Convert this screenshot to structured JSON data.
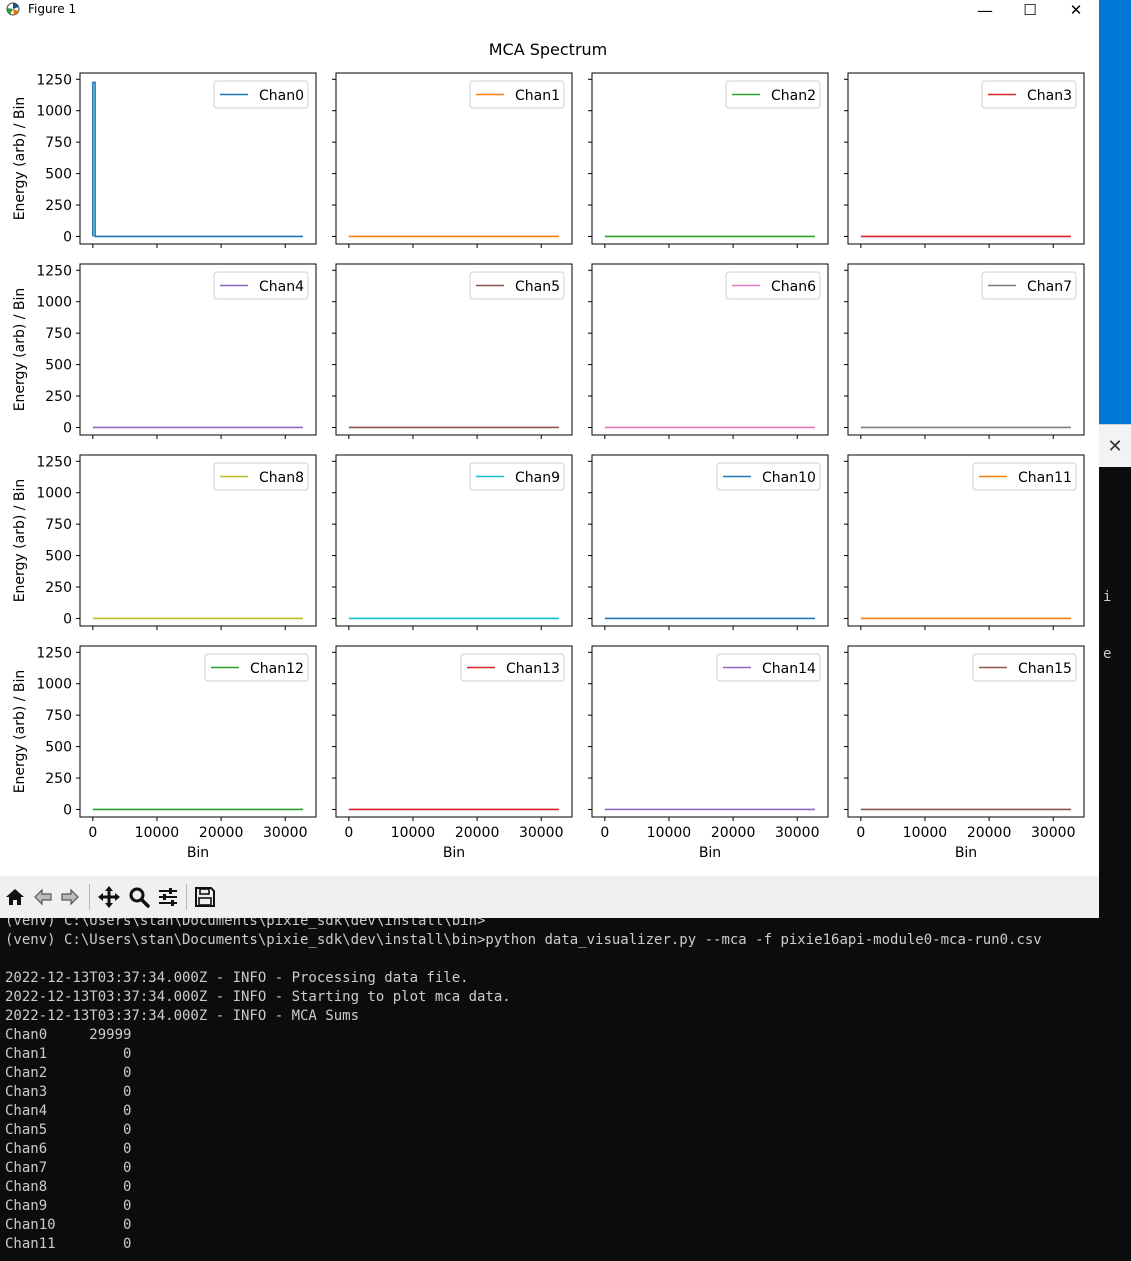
{
  "window": {
    "title": "Figure 1",
    "buttons": {
      "minimize": "—",
      "maximize": "☐",
      "close": "✕"
    }
  },
  "figure": {
    "title": "MCA Spectrum",
    "ylabel": "Energy (arb) / Bin",
    "xlabel": "Bin",
    "y_ticks": [
      "0",
      "250",
      "500",
      "750",
      "1000",
      "1250"
    ],
    "x_ticks": [
      "0",
      "10000",
      "20000",
      "30000"
    ]
  },
  "chart_data": {
    "type": "line",
    "title": "MCA Spectrum",
    "xlabel": "Bin",
    "ylabel": "Energy (arb) / Bin",
    "xlim": [
      -2000,
      34800
    ],
    "ylim": [
      -60,
      1300
    ],
    "grid": false,
    "legend": "top-right",
    "layout": "4x4 subplots, shared axes",
    "series": [
      {
        "name": "Chan0",
        "color": "#1f77b4",
        "x": [
          0,
          0,
          350,
          350,
          32767
        ],
        "y": [
          0,
          1225,
          1225,
          0,
          0
        ]
      },
      {
        "name": "Chan1",
        "color": "#ff7f0e",
        "x": [
          0,
          32767
        ],
        "y": [
          0,
          0
        ]
      },
      {
        "name": "Chan2",
        "color": "#2ca02c",
        "x": [
          0,
          32767
        ],
        "y": [
          0,
          0
        ]
      },
      {
        "name": "Chan3",
        "color": "#d62728",
        "x": [
          0,
          32767
        ],
        "y": [
          0,
          0
        ]
      },
      {
        "name": "Chan4",
        "color": "#9467bd",
        "x": [
          0,
          32767
        ],
        "y": [
          0,
          0
        ]
      },
      {
        "name": "Chan5",
        "color": "#8c564b",
        "x": [
          0,
          32767
        ],
        "y": [
          0,
          0
        ]
      },
      {
        "name": "Chan6",
        "color": "#e377c2",
        "x": [
          0,
          32767
        ],
        "y": [
          0,
          0
        ]
      },
      {
        "name": "Chan7",
        "color": "#7f7f7f",
        "x": [
          0,
          32767
        ],
        "y": [
          0,
          0
        ]
      },
      {
        "name": "Chan8",
        "color": "#bcbd22",
        "x": [
          0,
          32767
        ],
        "y": [
          0,
          0
        ]
      },
      {
        "name": "Chan9",
        "color": "#17becf",
        "x": [
          0,
          32767
        ],
        "y": [
          0,
          0
        ]
      },
      {
        "name": "Chan10",
        "color": "#1f77b4",
        "x": [
          0,
          32767
        ],
        "y": [
          0,
          0
        ]
      },
      {
        "name": "Chan11",
        "color": "#ff7f0e",
        "x": [
          0,
          32767
        ],
        "y": [
          0,
          0
        ]
      },
      {
        "name": "Chan12",
        "color": "#2ca02c",
        "x": [
          0,
          32767
        ],
        "y": [
          0,
          0
        ]
      },
      {
        "name": "Chan13",
        "color": "#d62728",
        "x": [
          0,
          32767
        ],
        "y": [
          0,
          0
        ]
      },
      {
        "name": "Chan14",
        "color": "#9467bd",
        "x": [
          0,
          32767
        ],
        "y": [
          0,
          0
        ]
      },
      {
        "name": "Chan15",
        "color": "#8c564b",
        "x": [
          0,
          32767
        ],
        "y": [
          0,
          0
        ]
      }
    ]
  },
  "toolbar": {
    "buttons": [
      {
        "name": "home",
        "icon": "home-icon"
      },
      {
        "name": "back",
        "icon": "back-arrow-icon"
      },
      {
        "name": "forward",
        "icon": "forward-arrow-icon"
      },
      {
        "name": "pan",
        "icon": "move-icon"
      },
      {
        "name": "zoom",
        "icon": "magnifier-icon"
      },
      {
        "name": "configure",
        "icon": "sliders-icon"
      },
      {
        "name": "save",
        "icon": "floppy-disk-icon"
      }
    ]
  },
  "terminal": {
    "lines": [
      "(venv) C:\\Users\\stan\\Documents\\pixie_sdk\\dev\\install\\bin>",
      "(venv) C:\\Users\\stan\\Documents\\pixie_sdk\\dev\\install\\bin>python data_visualizer.py --mca -f pixie16api-module0-mca-run0.csv",
      "",
      "2022-12-13T03:37:34.000Z - INFO - Processing data file.",
      "2022-12-13T03:37:34.000Z - INFO - Starting to plot mca data.",
      "2022-12-13T03:37:34.000Z - INFO - MCA Sums",
      "Chan0     29999",
      "Chan1         0",
      "Chan2         0",
      "Chan3         0",
      "Chan4         0",
      "Chan5         0",
      "Chan6         0",
      "Chan7         0",
      "Chan8         0",
      "Chan9         0",
      "Chan10        0",
      "Chan11        0"
    ]
  },
  "side_fragments": [
    "i",
    "e"
  ],
  "colors": {
    "taskbar_accent": "#0078d7",
    "terminal_bg": "#0c0c0c",
    "terminal_fg": "#cccccc",
    "toolbar_bg": "#f0f0f0"
  }
}
